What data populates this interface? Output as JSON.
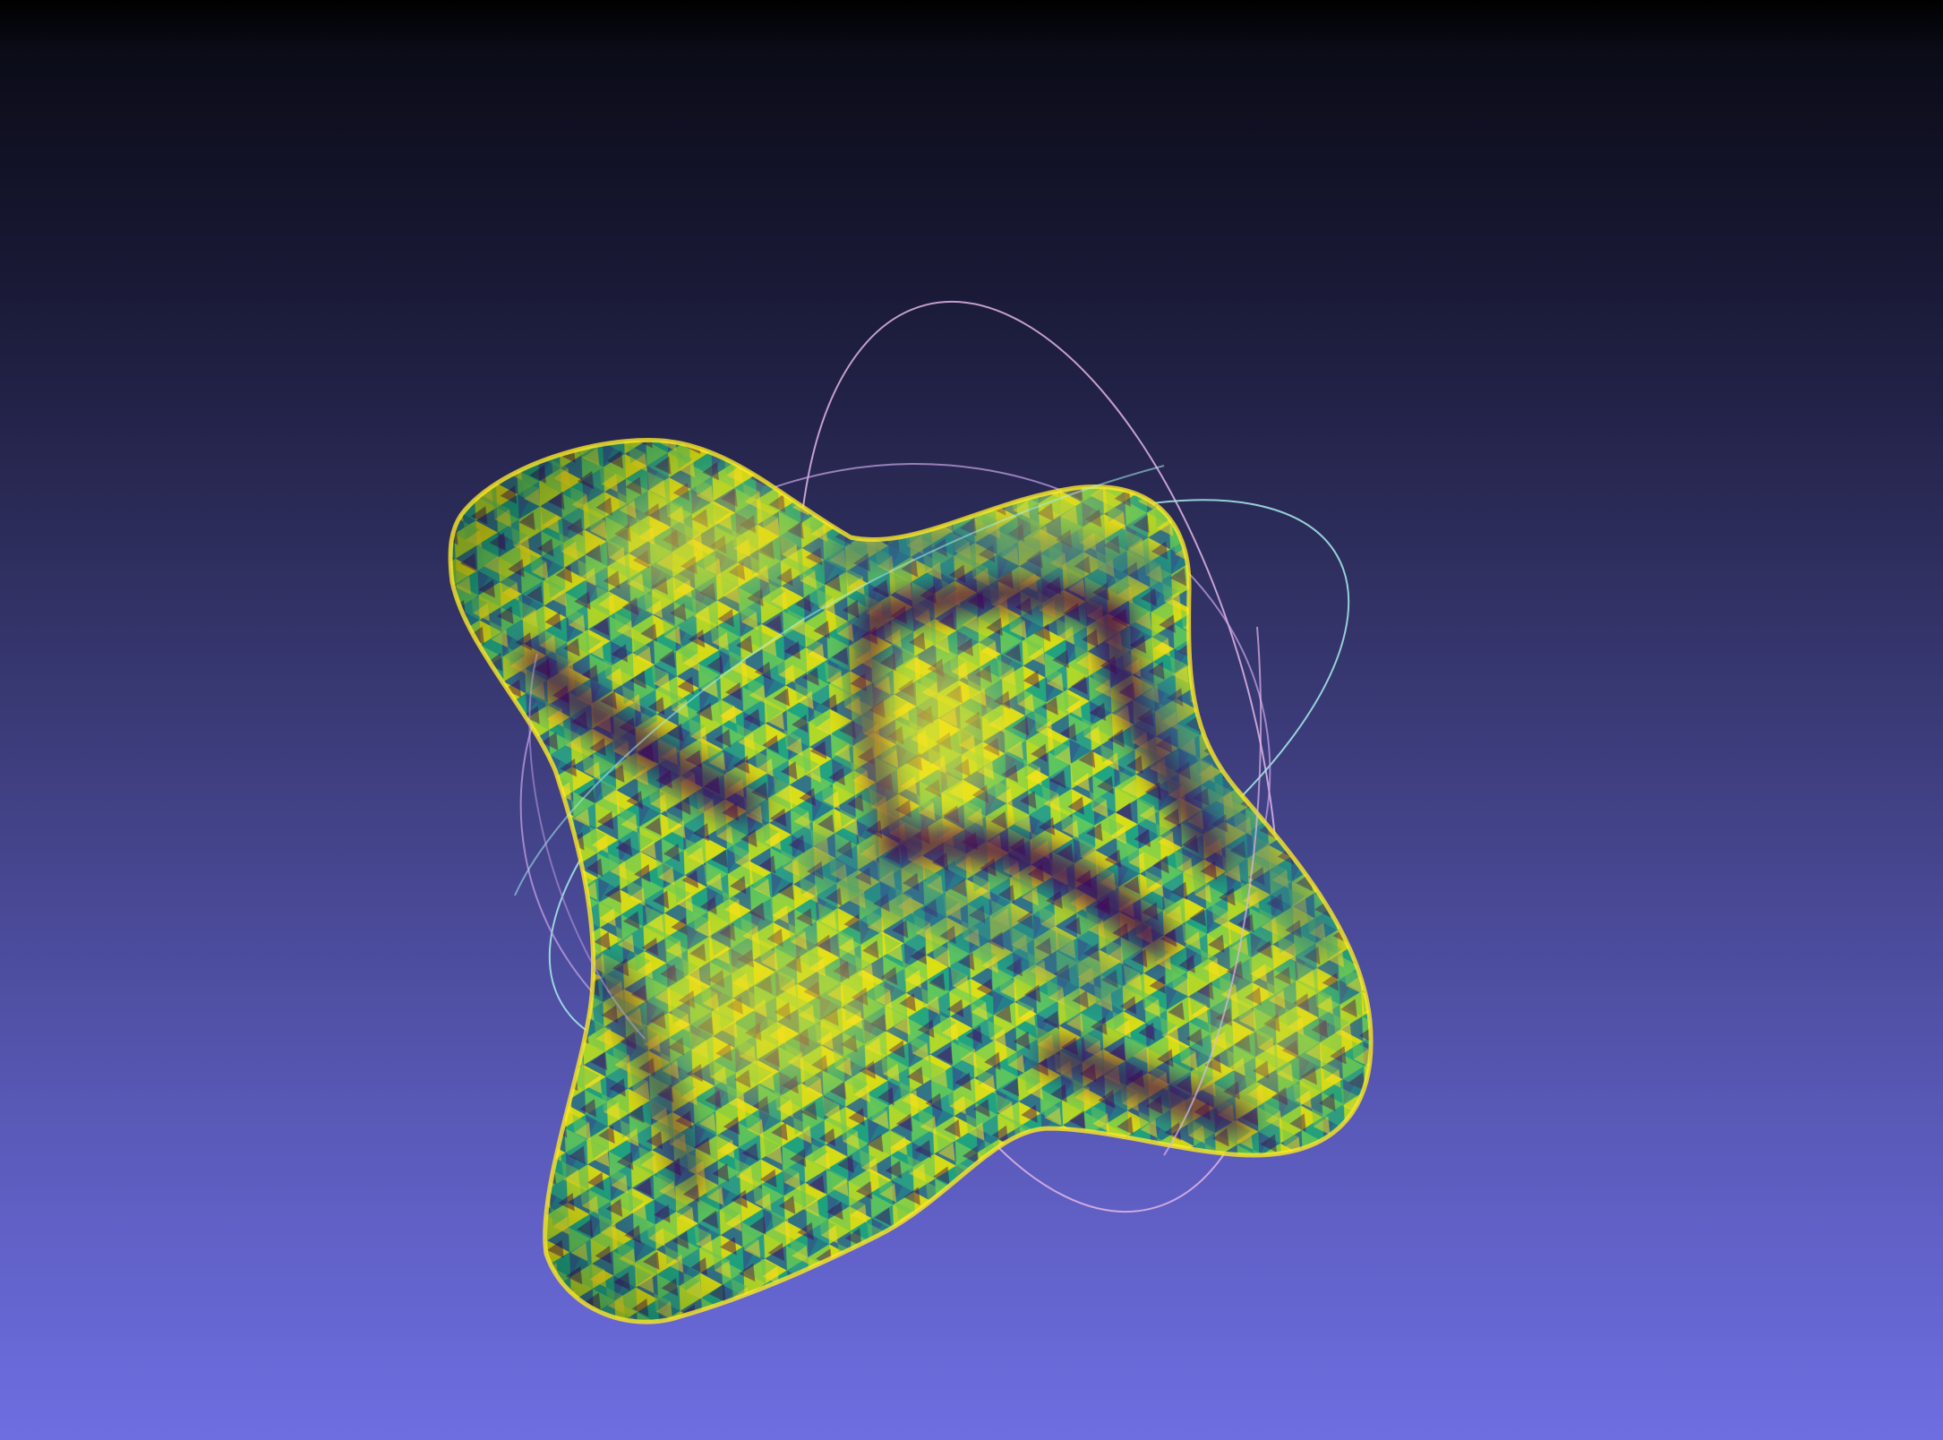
{
  "viewer": {
    "background_top_color": "#000000",
    "background_bottom_color": "#6e6ee2"
  },
  "mesh": {
    "shape": "four-lobed blob",
    "colormap": "viridis",
    "colormap_stops": [
      "#440154",
      "#3b528b",
      "#21918c",
      "#5ec962",
      "#fde725"
    ]
  },
  "trackball": {
    "visible": true,
    "rings": [
      "pink-ring",
      "cyan-ring",
      "violet-ring"
    ],
    "ring_colors": [
      "#e0b6e6",
      "#a8ecec",
      "#c9a6e6"
    ]
  }
}
